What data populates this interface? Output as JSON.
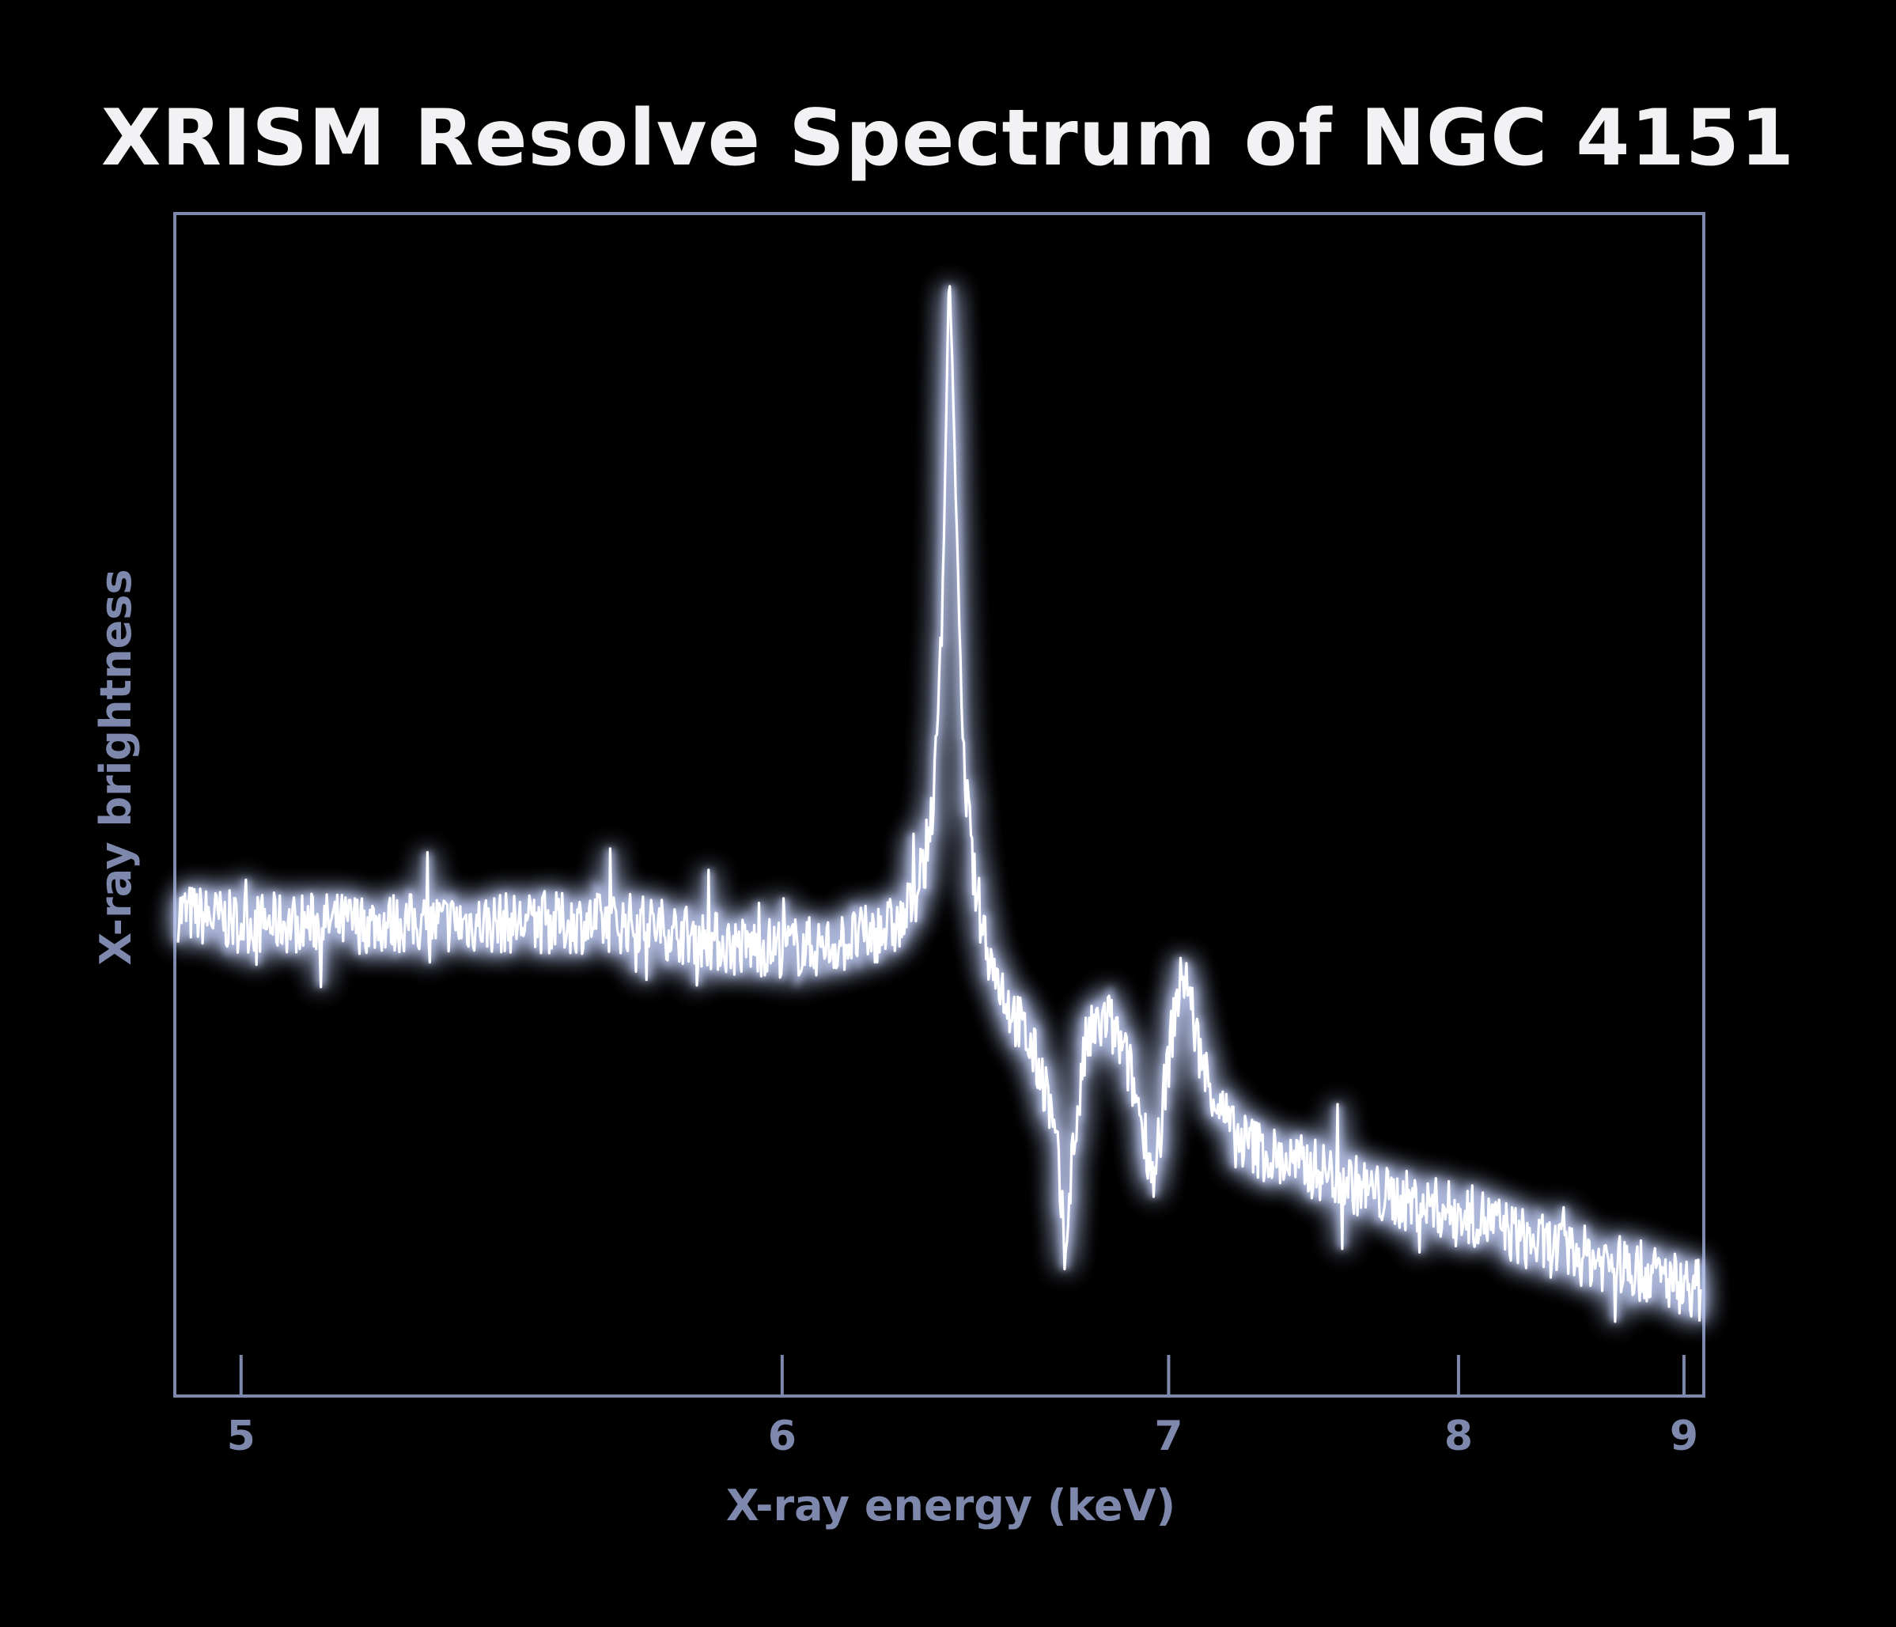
{
  "title": "XRISM Resolve Spectrum of NGC 4151",
  "colors": {
    "background": "#000000",
    "frame": "#7e88ad",
    "axis_text": "#7e88ad",
    "line": "#ffffff",
    "glow": "#c9d6ff",
    "title": "#f2f2f4"
  },
  "chart_data": {
    "type": "line",
    "title": "XRISM Resolve Spectrum of NGC 4151",
    "xlabel": "X-ray energy (keV)",
    "ylabel": "X-ray brightness",
    "xlim": [
      4.9,
      9.1
    ],
    "ylim": [
      0,
      100
    ],
    "xscale": "reciprocal",
    "xticks": [
      5,
      6,
      7,
      8,
      9
    ],
    "xtick_labels": [
      "5",
      "6",
      "7",
      "8",
      "9"
    ],
    "y_tick_labels": false,
    "grid": false,
    "legend": "none",
    "series": [
      {
        "name": "",
        "points": [
          [
            4.9,
            41
          ],
          [
            5.0,
            40
          ],
          [
            5.1,
            40
          ],
          [
            5.2,
            40
          ],
          [
            5.3,
            40
          ],
          [
            5.4,
            40
          ],
          [
            5.5,
            40
          ],
          [
            5.6,
            40
          ],
          [
            5.7,
            40
          ],
          [
            5.8,
            39
          ],
          [
            5.9,
            38
          ],
          [
            6.0,
            38
          ],
          [
            6.1,
            38
          ],
          [
            6.2,
            39
          ],
          [
            6.28,
            40
          ],
          [
            6.33,
            44
          ],
          [
            6.36,
            52
          ],
          [
            6.38,
            70
          ],
          [
            6.395,
            96
          ],
          [
            6.41,
            78
          ],
          [
            6.43,
            54
          ],
          [
            6.46,
            43
          ],
          [
            6.5,
            37
          ],
          [
            6.55,
            33
          ],
          [
            6.6,
            30
          ],
          [
            6.65,
            26
          ],
          [
            6.68,
            20
          ],
          [
            6.7,
            12
          ],
          [
            6.72,
            20
          ],
          [
            6.76,
            30
          ],
          [
            6.82,
            32
          ],
          [
            6.88,
            28
          ],
          [
            6.93,
            22
          ],
          [
            6.96,
            18
          ],
          [
            6.98,
            24
          ],
          [
            7.02,
            33
          ],
          [
            7.05,
            36
          ],
          [
            7.1,
            28
          ],
          [
            7.2,
            22
          ],
          [
            7.35,
            20
          ],
          [
            7.5,
            19
          ],
          [
            7.7,
            17
          ],
          [
            7.9,
            16
          ],
          [
            8.1,
            15
          ],
          [
            8.3,
            13
          ],
          [
            8.5,
            12
          ],
          [
            8.7,
            11
          ],
          [
            8.9,
            10
          ],
          [
            9.1,
            9
          ]
        ]
      }
    ]
  }
}
